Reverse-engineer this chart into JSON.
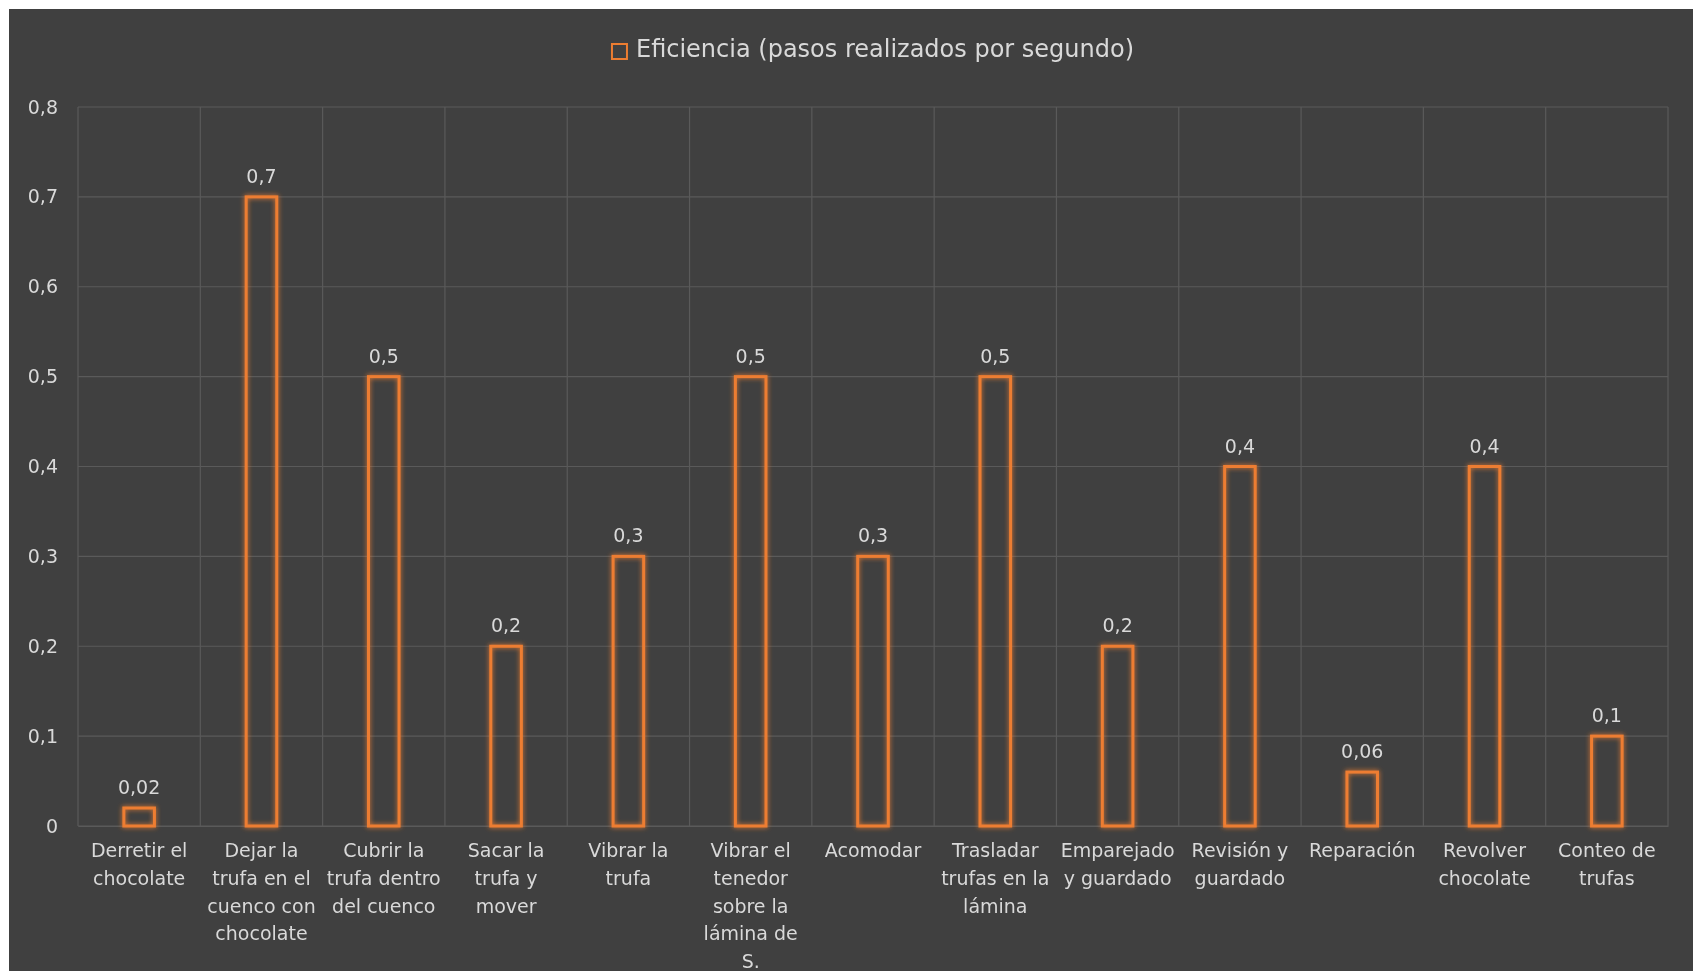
{
  "chart_data": {
    "type": "bar",
    "categories": [
      "Derretir el chocolate",
      "Dejar la trufa en el cuenco con chocolate",
      "Cubrir la trufa dentro del cuenco",
      "Sacar la trufa y mover",
      "Vibrar la trufa",
      "Vibrar el tenedor sobre la lámina de S.",
      "Acomodar",
      "Trasladar trufas en la lámina",
      "Emparejado y guardado",
      "Revisión y guardado",
      "Reparación",
      "Revolver chocolate",
      "Conteo de trufas"
    ],
    "series": [
      {
        "name": "Eficiencia (pasos realizados por segundo)",
        "color": "#ed7d31",
        "values": [
          0.02,
          0.7,
          0.5,
          0.2,
          0.3,
          0.5,
          0.3,
          0.5,
          0.2,
          0.4,
          0.06,
          0.4,
          0.1
        ],
        "value_labels": [
          "0,02",
          "0,7",
          "0,5",
          "0,2",
          "0,3",
          "0,5",
          "0,3",
          "0,5",
          "0,2",
          "0,4",
          "0,06",
          "0,4",
          "0,1"
        ]
      }
    ],
    "ylim": [
      0,
      0.8
    ],
    "yticks": [
      {
        "value": 0,
        "label": "0"
      },
      {
        "value": 0.1,
        "label": "0,1"
      },
      {
        "value": 0.2,
        "label": "0,2"
      },
      {
        "value": 0.3,
        "label": "0,3"
      },
      {
        "value": 0.4,
        "label": "0,4"
      },
      {
        "value": 0.5,
        "label": "0,5"
      },
      {
        "value": 0.6,
        "label": "0,6"
      },
      {
        "value": 0.7,
        "label": "0,7"
      },
      {
        "value": 0.8,
        "label": "0,8"
      }
    ],
    "grid": true,
    "legend": "top"
  }
}
